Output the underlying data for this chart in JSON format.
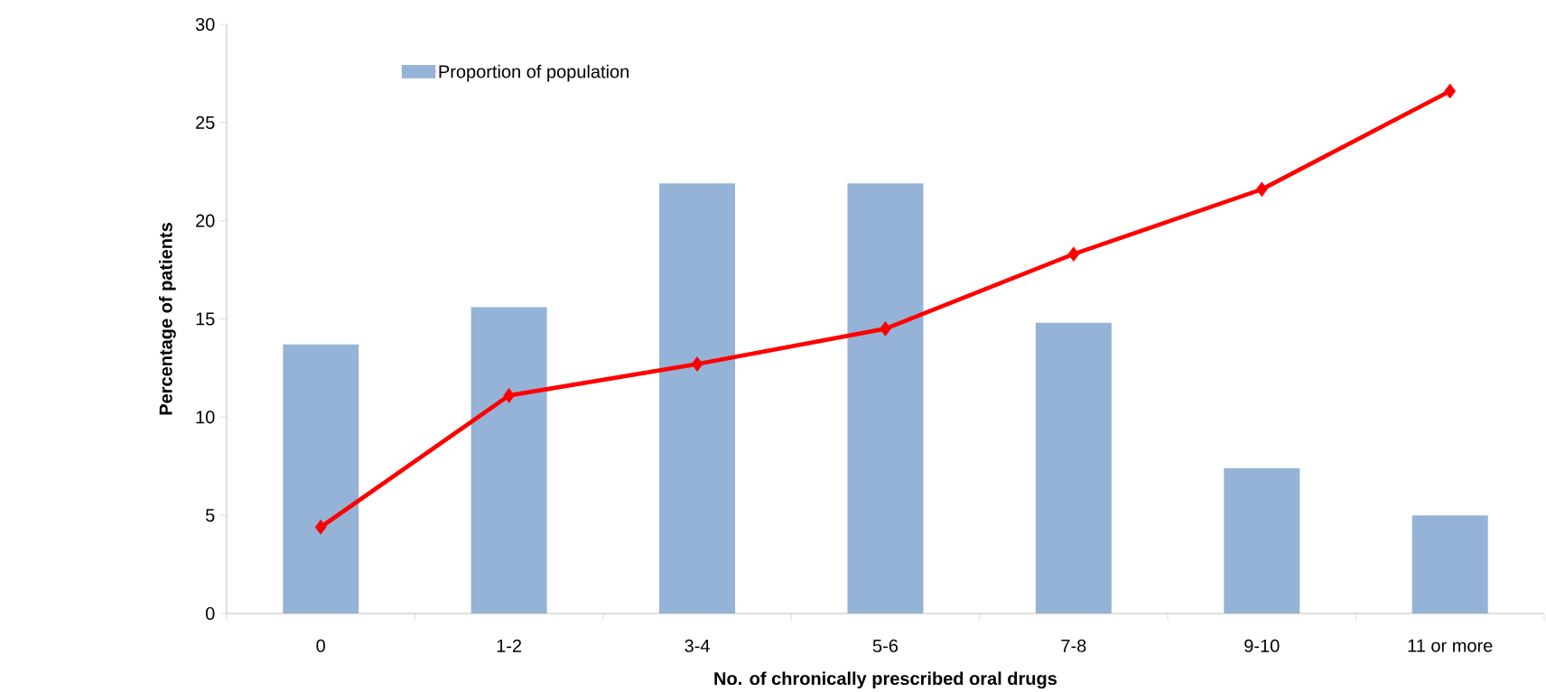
{
  "chart_data": {
    "type": "bar",
    "xlabel": "No. of chronically prescribed oral drugs",
    "ylabel": "Percentage of patients",
    "categories": [
      "0",
      "1-2",
      "3-4",
      "5-6",
      "7-8",
      "9-10",
      "11 or more"
    ],
    "series": [
      {
        "name": "Proportion of population",
        "color": "#95b3d7",
        "values": [
          13.7,
          15.6,
          21.9,
          21.9,
          14.8,
          7.4,
          5.0
        ]
      },
      {
        "type": "line",
        "color": "#ff0000",
        "values": [
          4.4,
          11.1,
          12.7,
          14.5,
          18.3,
          21.6,
          26.6
        ]
      }
    ],
    "marker": "diamond",
    "line_style": "solid",
    "ylim": [
      0,
      30
    ],
    "yticks": [
      0,
      5,
      10,
      15,
      20,
      25,
      30
    ],
    "legend": "top left"
  }
}
